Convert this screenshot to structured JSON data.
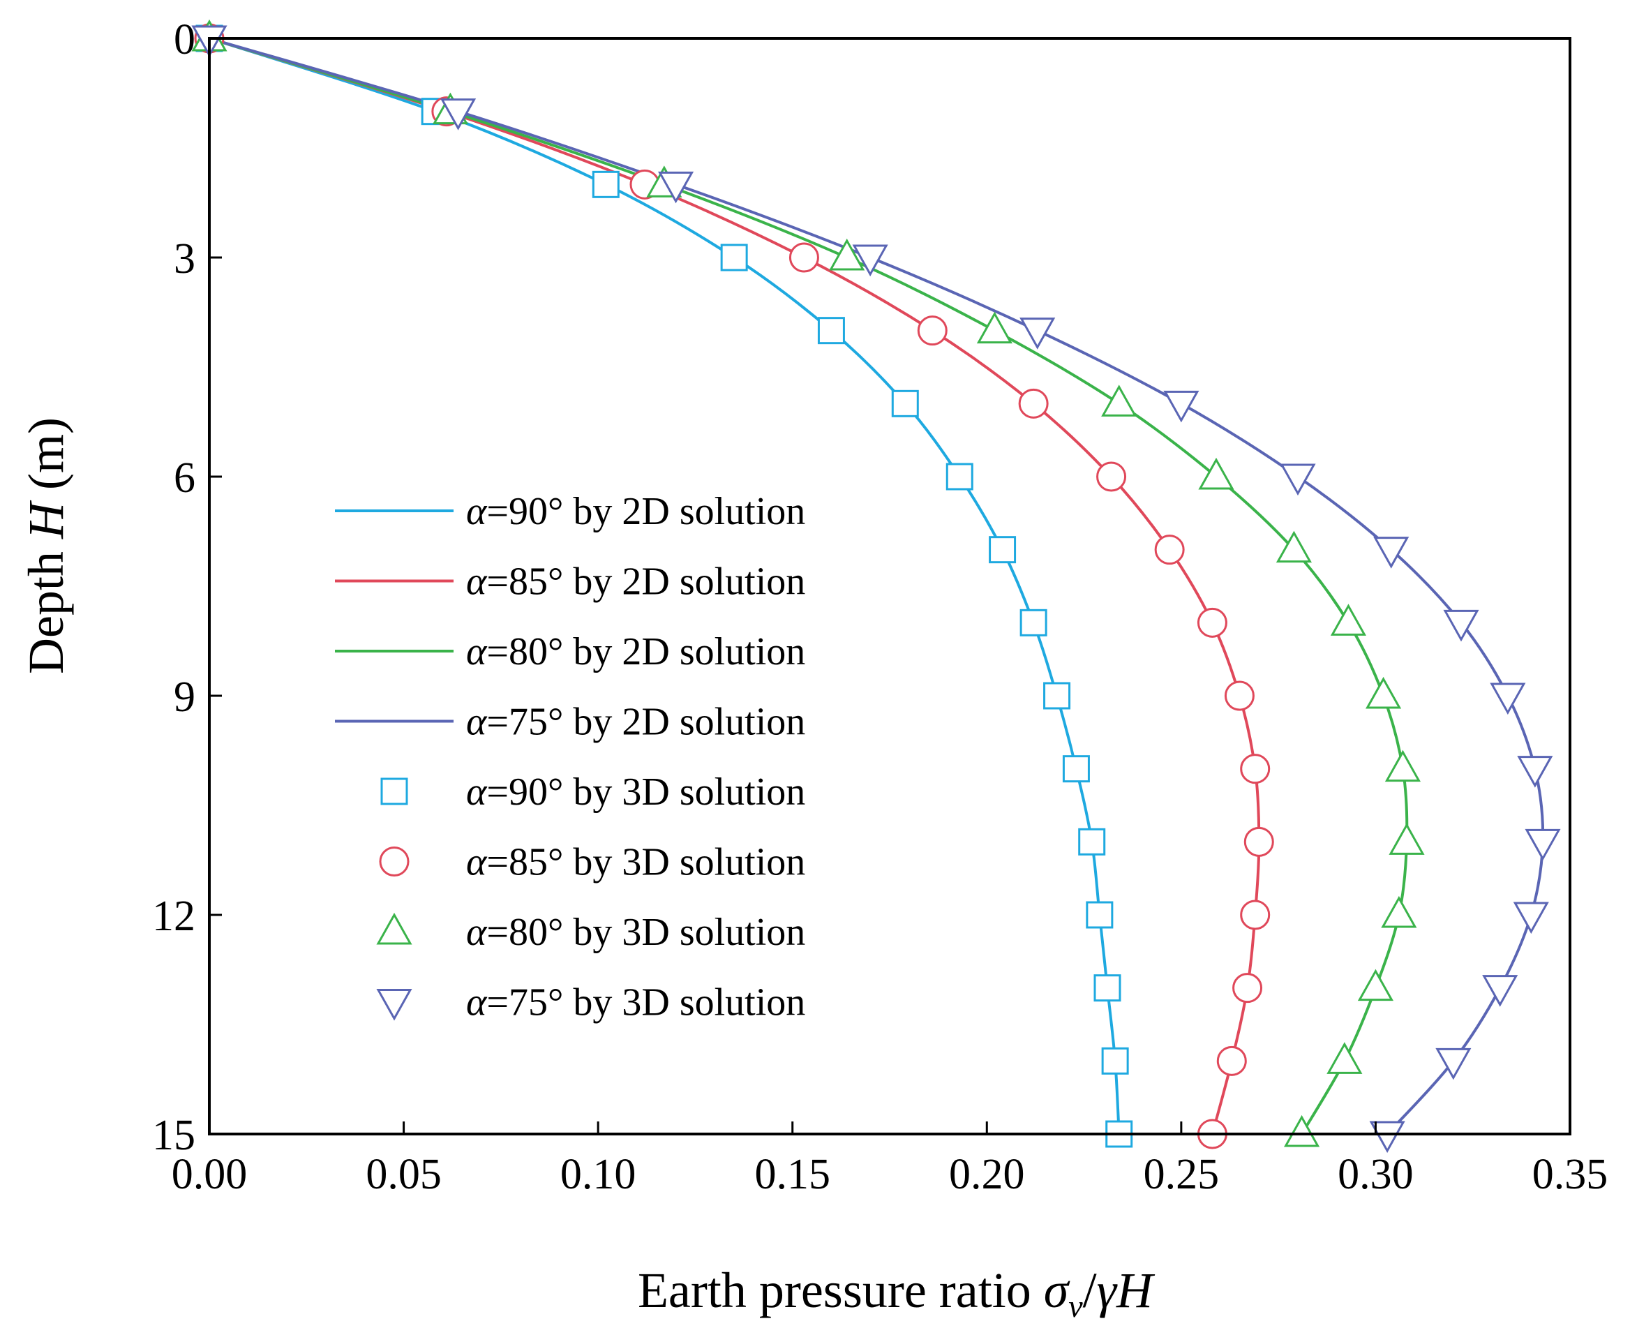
{
  "chart_data": {
    "type": "line",
    "xlabel": "Earth pressure ratio",
    "xlabel_symbol": {
      "sigma": "σ",
      "sub": "v",
      "slash": "/",
      "gamma": "γ",
      "H": "H"
    },
    "ylabel": {
      "prefix": "Depth ",
      "var": "H",
      "suffix": " (m)"
    },
    "xlim": [
      0.0,
      0.35
    ],
    "ylim": [
      0,
      15
    ],
    "y_inverted": true,
    "xticks": [
      "0.00",
      "0.05",
      "0.10",
      "0.15",
      "0.20",
      "0.25",
      "0.30",
      "0.35"
    ],
    "yticks": [
      "0",
      "3",
      "6",
      "9",
      "12",
      "15"
    ],
    "depth": [
      0,
      1,
      2,
      3,
      4,
      5,
      6,
      7,
      8,
      9,
      10,
      11,
      12,
      13,
      14,
      15
    ],
    "series": [
      {
        "name": "α=90° by 2D solution",
        "alpha": "90°",
        "method": "2D solution",
        "kind": "line",
        "color": "#1ea9e0",
        "values": [
          0.0,
          0.058,
          0.102,
          0.135,
          0.16,
          0.179,
          0.193,
          0.204,
          0.212,
          0.218,
          0.223,
          0.227,
          0.229,
          0.231,
          0.233,
          0.234
        ]
      },
      {
        "name": "α=85° by 2D solution",
        "alpha": "85°",
        "method": "2D solution",
        "kind": "line",
        "color": "#e0485a",
        "values": [
          0.0,
          0.061,
          0.112,
          0.153,
          0.186,
          0.212,
          0.232,
          0.247,
          0.258,
          0.265,
          0.269,
          0.27,
          0.269,
          0.267,
          0.263,
          0.258
        ]
      },
      {
        "name": "α=80° by 2D solution",
        "alpha": "80°",
        "method": "2D solution",
        "kind": "line",
        "color": "#3ab34a",
        "values": [
          0.0,
          0.062,
          0.117,
          0.164,
          0.202,
          0.234,
          0.259,
          0.279,
          0.293,
          0.302,
          0.307,
          0.308,
          0.306,
          0.3,
          0.292,
          0.281
        ]
      },
      {
        "name": "α=75° by 2D solution",
        "alpha": "75°",
        "method": "2D solution",
        "kind": "line",
        "color": "#5a65b4",
        "values": [
          0.0,
          0.064,
          0.12,
          0.17,
          0.213,
          0.25,
          0.28,
          0.304,
          0.322,
          0.334,
          0.341,
          0.343,
          0.34,
          0.332,
          0.32,
          0.303
        ]
      },
      {
        "name": "α=90° by 3D solution",
        "alpha": "90°",
        "method": "3D solution",
        "kind": "marker",
        "marker": "square",
        "color": "#1ea9e0",
        "values": [
          0.0,
          0.058,
          0.102,
          0.135,
          0.16,
          0.179,
          0.193,
          0.204,
          0.212,
          0.218,
          0.223,
          0.227,
          0.229,
          0.231,
          0.233,
          0.234
        ]
      },
      {
        "name": "α=85° by 3D solution",
        "alpha": "85°",
        "method": "3D solution",
        "kind": "marker",
        "marker": "circle",
        "color": "#e0485a",
        "values": [
          0.0,
          0.061,
          0.112,
          0.153,
          0.186,
          0.212,
          0.232,
          0.247,
          0.258,
          0.265,
          0.269,
          0.27,
          0.269,
          0.267,
          0.263,
          0.258
        ]
      },
      {
        "name": "α=80° by 3D solution",
        "alpha": "80°",
        "method": "3D solution",
        "kind": "marker",
        "marker": "triangle-up",
        "color": "#3ab34a",
        "values": [
          0.0,
          0.062,
          0.117,
          0.164,
          0.202,
          0.234,
          0.259,
          0.279,
          0.293,
          0.302,
          0.307,
          0.308,
          0.306,
          0.3,
          0.292,
          0.281
        ]
      },
      {
        "name": "α=75° by 3D solution",
        "alpha": "75°",
        "method": "3D solution",
        "kind": "marker",
        "marker": "triangle-down",
        "color": "#5a65b4",
        "values": [
          0.0,
          0.064,
          0.12,
          0.17,
          0.213,
          0.25,
          0.28,
          0.304,
          0.322,
          0.334,
          0.341,
          0.343,
          0.34,
          0.332,
          0.32,
          0.303
        ]
      }
    ],
    "legend_position": "left-center",
    "grid": false
  }
}
